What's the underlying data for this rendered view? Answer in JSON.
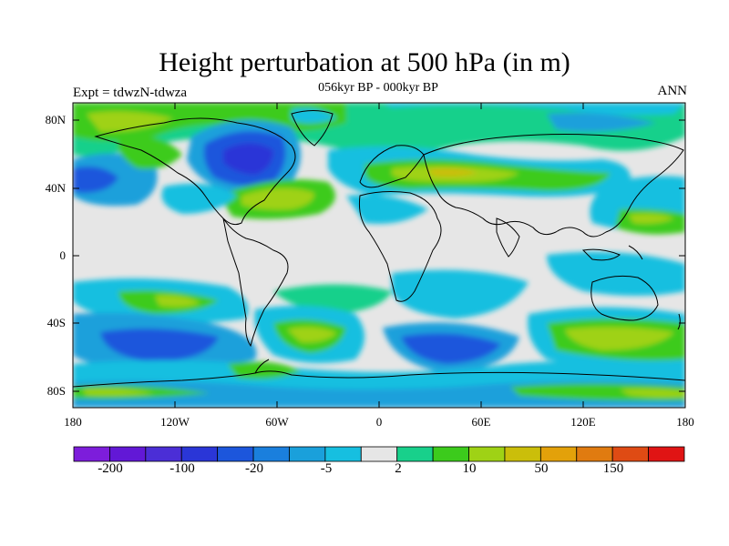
{
  "title": "Height perturbation at 500 hPa (in m)",
  "subtitle": "056kyr BP - 000kyr BP",
  "experiment_label": "Expt = tdwzN-tdwza",
  "season_label": "ANN",
  "lat_ticks": [
    "80N",
    "40N",
    "0",
    "40S",
    "80S"
  ],
  "lon_ticks": [
    "180",
    "120W",
    "60W",
    "0",
    "60E",
    "120E",
    "180"
  ],
  "colorbar": {
    "colors": [
      "#7d1ddb",
      "#6218d6",
      "#4b2ed6",
      "#2a36d7",
      "#1c56dc",
      "#1a7fdd",
      "#1aa0db",
      "#16bfe0",
      "#e6e6e6",
      "#18d08b",
      "#3ccb1c",
      "#9fd215",
      "#cbbe0a",
      "#e3a10a",
      "#e07b10",
      "#df4b14",
      "#e01414"
    ],
    "labels": [
      "-200",
      "-100",
      "-20",
      "-5",
      "2",
      "10",
      "50",
      "150"
    ]
  }
}
